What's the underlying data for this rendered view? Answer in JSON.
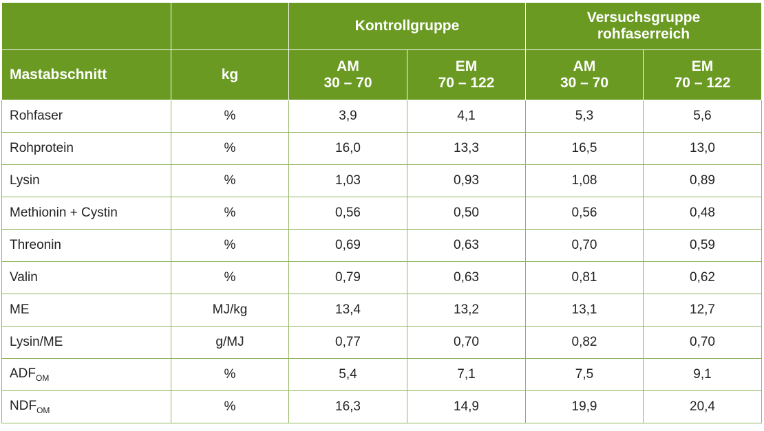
{
  "header": {
    "groups": [
      "Kontrollgruppe",
      "Versuchsgruppe",
      "rohfaserreich"
    ],
    "col_first": "Mastabschnitt",
    "col_unit": "kg",
    "sub": [
      {
        "l1": "AM",
        "l2": "30 – 70"
      },
      {
        "l1": "EM",
        "l2": "70 – 122"
      },
      {
        "l1": "AM",
        "l2": "30 – 70"
      },
      {
        "l1": "EM",
        "l2": "70 – 122"
      }
    ]
  },
  "rows": [
    {
      "name": "Rohfaser",
      "sub": "",
      "unit": "%",
      "v": [
        "3,9",
        "4,1",
        "5,3",
        "5,6"
      ]
    },
    {
      "name": "Rohprotein",
      "sub": "",
      "unit": "%",
      "v": [
        "16,0",
        "13,3",
        "16,5",
        "13,0"
      ]
    },
    {
      "name": "Lysin",
      "sub": "",
      "unit": "%",
      "v": [
        "1,03",
        "0,93",
        "1,08",
        "0,89"
      ]
    },
    {
      "name": "Methionin + Cystin",
      "sub": "",
      "unit": "%",
      "v": [
        "0,56",
        "0,50",
        "0,56",
        "0,48"
      ]
    },
    {
      "name": "Threonin",
      "sub": "",
      "unit": "%",
      "v": [
        "0,69",
        "0,63",
        "0,70",
        "0,59"
      ]
    },
    {
      "name": "Valin",
      "sub": "",
      "unit": "%",
      "v": [
        "0,79",
        "0,63",
        "0,81",
        "0,62"
      ]
    },
    {
      "name": "ME",
      "sub": "",
      "unit": "MJ/kg",
      "v": [
        "13,4",
        "13,2",
        "13,1",
        "12,7"
      ]
    },
    {
      "name": "Lysin/ME",
      "sub": "",
      "unit": "g/MJ",
      "v": [
        "0,77",
        "0,70",
        "0,82",
        "0,70"
      ]
    },
    {
      "name": "ADF",
      "sub": "OM",
      "unit": "%",
      "v": [
        "5,4",
        "7,1",
        "7,5",
        "9,1"
      ]
    },
    {
      "name": "NDF",
      "sub": "OM",
      "unit": "%",
      "v": [
        "16,3",
        "14,9",
        "19,9",
        "20,4"
      ]
    }
  ]
}
